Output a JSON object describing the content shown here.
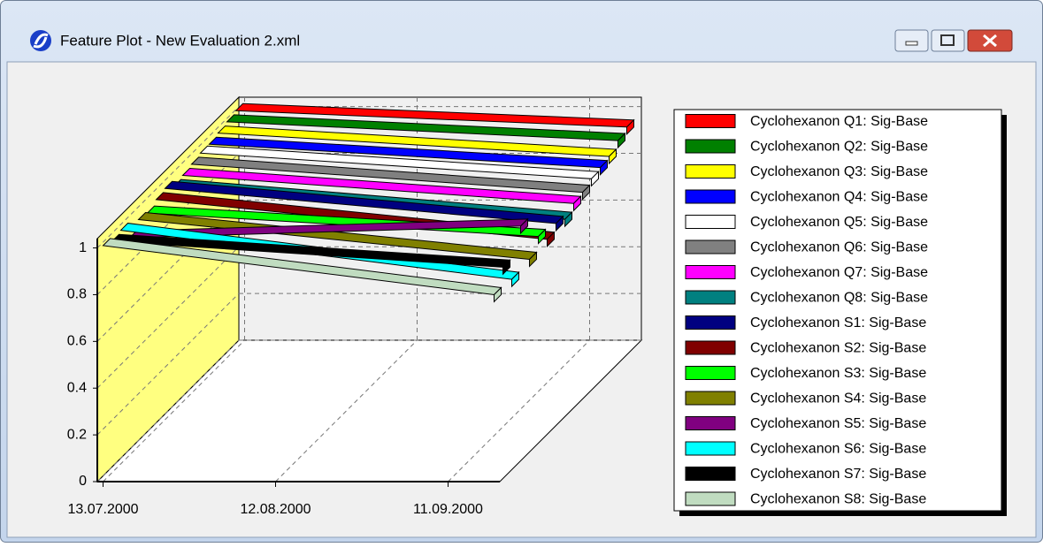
{
  "window": {
    "title": "Feature Plot - New Evaluation 2.xml"
  },
  "chart_data": {
    "type": "line3d",
    "x": [
      "13.07.2000",
      "19.09.2000"
    ],
    "xlim": [
      "12.07.2000",
      "20.09.2000"
    ],
    "xticks": [
      "13.07.2000",
      "12.08.2000",
      "11.09.2000"
    ],
    "ylim": [
      0,
      1.04
    ],
    "yticks": [
      0,
      0.2,
      0.4,
      0.6,
      0.8,
      1
    ],
    "grid": true,
    "legend": "right",
    "wall_color": "#ffff80",
    "series": [
      {
        "name": "Cyclohexanon Q1: Sig-Base",
        "color": "#ff0000",
        "values": [
          1.02,
          0.95
        ]
      },
      {
        "name": "Cyclohexanon Q2: Sig-Base",
        "color": "#008000",
        "values": [
          1.01,
          0.93
        ]
      },
      {
        "name": "Cyclohexanon Q3: Sig-Base",
        "color": "#ffff00",
        "values": [
          1.0,
          0.9
        ]
      },
      {
        "name": "Cyclohexanon Q4: Sig-Base",
        "color": "#0000ff",
        "values": [
          0.99,
          0.89
        ]
      },
      {
        "name": "Cyclohexanon Q5: Sig-Base",
        "color": "#ffffff",
        "values": [
          0.99,
          0.88
        ]
      },
      {
        "name": "Cyclohexanon Q6: Sig-Base",
        "color": "#808080",
        "values": [
          0.98,
          0.86
        ]
      },
      {
        "name": "Cyclohexanon Q7: Sig-Base",
        "color": "#ff00ff",
        "values": [
          0.97,
          0.85
        ]
      },
      {
        "name": "Cyclohexanon Q8: Sig-Base",
        "color": "#008080",
        "values": [
          0.96,
          0.82
        ]
      },
      {
        "name": "Cyclohexanon S1: Sig-Base",
        "color": "#000080",
        "values": [
          0.99,
          0.84
        ]
      },
      {
        "name": "Cyclohexanon S2: Sig-Base",
        "color": "#800000",
        "values": [
          0.98,
          0.81
        ]
      },
      {
        "name": "Cyclohexanon S3: Sig-Base",
        "color": "#00ff00",
        "values": [
          0.96,
          0.86
        ]
      },
      {
        "name": "Cyclohexanon S4: Sig-Base",
        "color": "#808000",
        "values": [
          0.97,
          0.8
        ]
      },
      {
        "name": "Cyclohexanon S5: Sig-Base",
        "color": "#800080",
        "values": [
          0.93,
          0.98
        ]
      },
      {
        "name": "Cyclohexanon S6: Sig-Base",
        "color": "#00ffff",
        "values": [
          1.0,
          0.79
        ]
      },
      {
        "name": "Cyclohexanon S7: Sig-Base",
        "color": "#000000",
        "values": [
          0.99,
          0.88
        ]
      },
      {
        "name": "Cyclohexanon S8: Sig-Base",
        "color": "#c0dcc0",
        "values": [
          1.01,
          0.8
        ]
      }
    ]
  }
}
